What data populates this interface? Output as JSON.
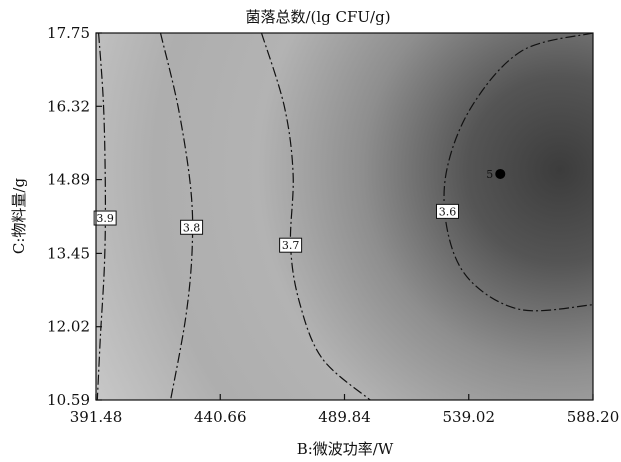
{
  "chart_data": {
    "type": "contour",
    "title": "菌落总数/(lg CFU/g)",
    "xlabel": "B:微波功率/W",
    "ylabel": "C:物料量/g",
    "xlim": [
      391.48,
      588.2
    ],
    "ylim": [
      10.59,
      17.75
    ],
    "x_ticks": [
      "391.48",
      "440.66",
      "489.84",
      "539.02",
      "588.20"
    ],
    "y_ticks": [
      "10.59",
      "12.02",
      "13.45",
      "14.89",
      "16.32",
      "17.75"
    ],
    "contours": [
      {
        "level": "3.9",
        "points": [
          [
            392.5,
            17.75
          ],
          [
            394.5,
            16.3
          ],
          [
            395.2,
            14.5
          ],
          [
            394.8,
            13.2
          ],
          [
            393.2,
            11.8
          ],
          [
            392.0,
            10.59
          ]
        ]
      },
      {
        "level": "3.8",
        "points": [
          [
            417.0,
            17.75
          ],
          [
            424.0,
            16.3
          ],
          [
            429.0,
            14.7
          ],
          [
            429.5,
            13.5
          ],
          [
            427.0,
            12.2
          ],
          [
            421.0,
            10.59
          ]
        ]
      },
      {
        "level": "3.7",
        "points": [
          [
            457.0,
            17.75
          ],
          [
            466.0,
            16.32
          ],
          [
            469.5,
            15.0
          ],
          [
            468.5,
            13.6
          ],
          [
            472.0,
            12.5
          ],
          [
            481.0,
            11.4
          ],
          [
            500.0,
            10.59
          ]
        ]
      },
      {
        "level": "3.6",
        "points": [
          [
            588.2,
            17.75
          ],
          [
            560.0,
            17.4
          ],
          [
            540.0,
            16.3
          ],
          [
            530.0,
            15.0
          ],
          [
            531.0,
            13.8
          ],
          [
            540.0,
            12.9
          ],
          [
            560.0,
            12.35
          ],
          [
            588.2,
            12.45
          ]
        ]
      }
    ],
    "optimum": {
      "label": "5",
      "x": 551.5,
      "y": 15.0
    }
  }
}
